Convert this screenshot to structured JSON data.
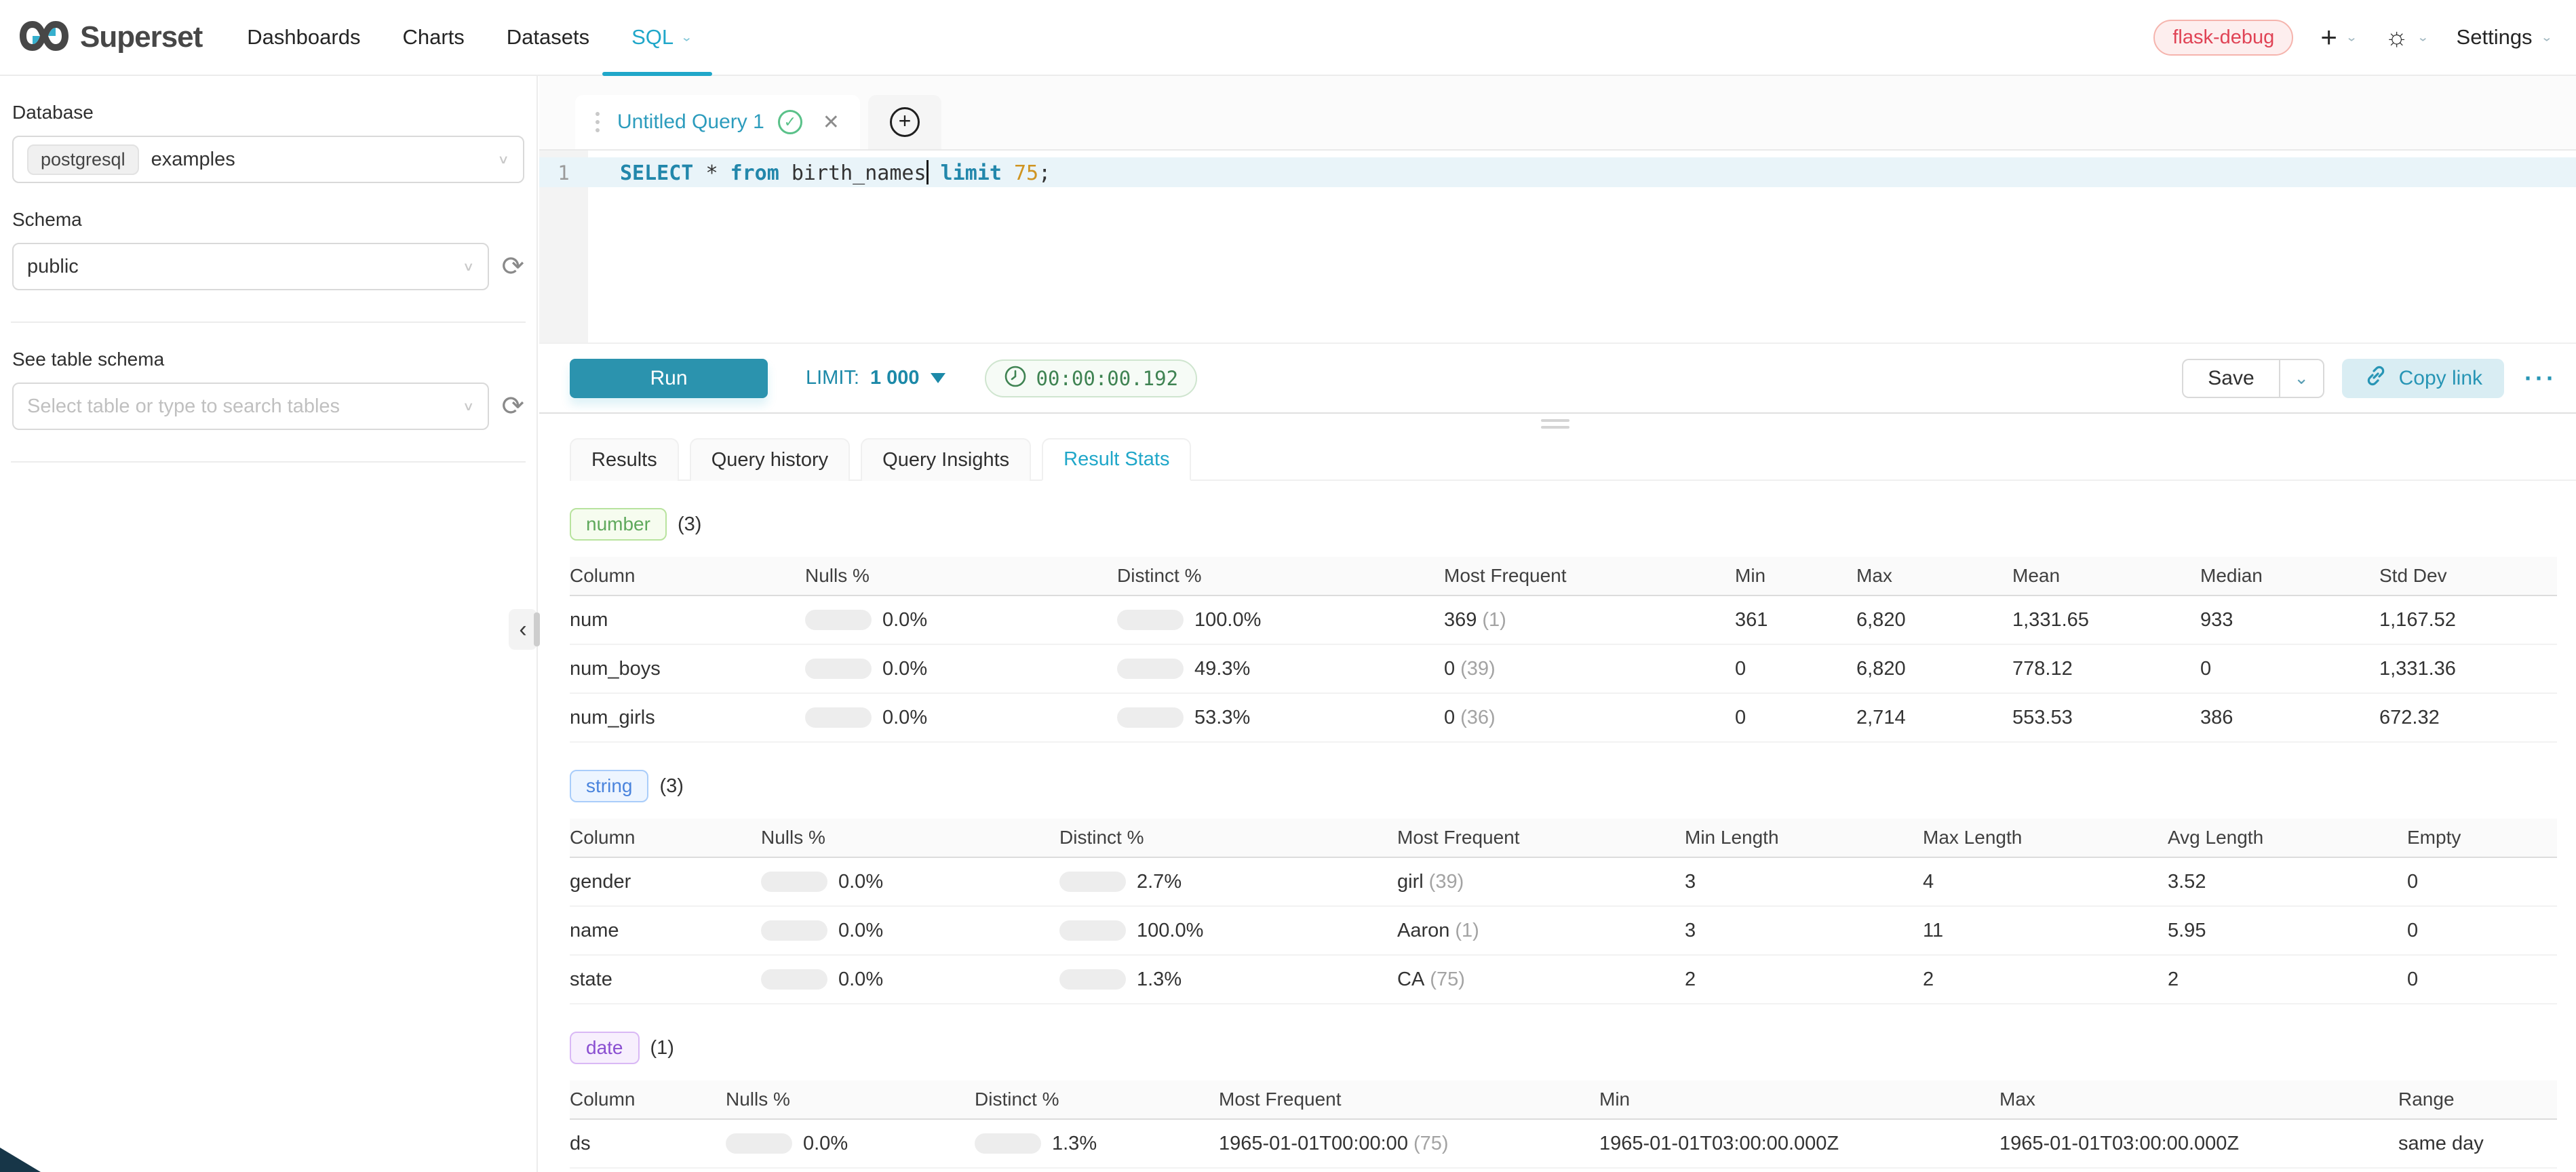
{
  "header": {
    "brand": "Superset",
    "nav": [
      {
        "label": "Dashboards"
      },
      {
        "label": "Charts"
      },
      {
        "label": "Datasets"
      },
      {
        "label": "SQL",
        "active": true
      }
    ],
    "environment_badge": "flask-debug",
    "settings_label": "Settings"
  },
  "colors": {
    "primary": "#20a7c9",
    "run_button": "#2b93ae",
    "success_bar": "#5ac189",
    "error_badge": "#e04355"
  },
  "sidebar": {
    "database_label": "Database",
    "database_engine": "postgresql",
    "database_value": "examples",
    "schema_label": "Schema",
    "schema_value": "public",
    "table_label": "See table schema",
    "table_placeholder": "Select table or type to search tables"
  },
  "editor": {
    "tab_title": "Untitled Query 1",
    "line_number": "1",
    "sql_tokens": [
      {
        "text": "SELECT",
        "type": "kw"
      },
      {
        "text": " ",
        "type": "plain"
      },
      {
        "text": "*",
        "type": "plain"
      },
      {
        "text": " ",
        "type": "plain"
      },
      {
        "text": "from",
        "type": "kw"
      },
      {
        "text": " ",
        "type": "plain"
      },
      {
        "text": "birth_names",
        "type": "plain"
      },
      {
        "type": "caret"
      },
      {
        "text": " ",
        "type": "plain"
      },
      {
        "text": "limit",
        "type": "kw"
      },
      {
        "text": " ",
        "type": "plain"
      },
      {
        "text": "75",
        "type": "num"
      },
      {
        "text": ";",
        "type": "plain"
      }
    ],
    "run_label": "Run",
    "limit_label": "LIMIT:",
    "limit_value": "1 000",
    "elapsed_time": "00:00:00.192",
    "save_label": "Save",
    "copy_link_label": "Copy link",
    "more_label": "···"
  },
  "south": {
    "tabs": [
      {
        "label": "Results"
      },
      {
        "label": "Query history"
      },
      {
        "label": "Query Insights"
      },
      {
        "label": "Result Stats",
        "active": true
      }
    ]
  },
  "result_stats": {
    "sections": [
      {
        "key": "number",
        "badge": "number",
        "count": "(3)",
        "badge_colors": {
          "text": "#5fa95c",
          "bg": "#f6fcef",
          "border": "#b8e39e"
        },
        "headers": [
          "Column",
          "Nulls %",
          "Distinct %",
          "Most Frequent",
          "Min",
          "Max",
          "Mean",
          "Median",
          "Std Dev"
        ],
        "rows": [
          {
            "column": "num",
            "nulls_pct": "0.0%",
            "nulls_fill": 0,
            "distinct_pct": "100.0%",
            "distinct_fill": 100,
            "most_frequent": "369",
            "most_frequent_count": "(1)",
            "values": [
              "361",
              "6,820",
              "1,331.65",
              "933",
              "1,167.52"
            ]
          },
          {
            "column": "num_boys",
            "nulls_pct": "0.0%",
            "nulls_fill": 0,
            "distinct_pct": "49.3%",
            "distinct_fill": 49.3,
            "most_frequent": "0",
            "most_frequent_count": "(39)",
            "values": [
              "0",
              "6,820",
              "778.12",
              "0",
              "1,331.36"
            ]
          },
          {
            "column": "num_girls",
            "nulls_pct": "0.0%",
            "nulls_fill": 0,
            "distinct_pct": "53.3%",
            "distinct_fill": 53.3,
            "most_frequent": "0",
            "most_frequent_count": "(36)",
            "values": [
              "0",
              "2,714",
              "553.53",
              "386",
              "672.32"
            ]
          }
        ]
      },
      {
        "key": "string",
        "badge": "string",
        "count": "(3)",
        "badge_colors": {
          "text": "#4a84dd",
          "bg": "#edf5ff",
          "border": "#a9cdfa"
        },
        "headers": [
          "Column",
          "Nulls %",
          "Distinct %",
          "Most Frequent",
          "Min Length",
          "Max Length",
          "Avg Length",
          "Empty"
        ],
        "rows": [
          {
            "column": "gender",
            "nulls_pct": "0.0%",
            "nulls_fill": 0,
            "distinct_pct": "2.7%",
            "distinct_fill": 2.7,
            "most_frequent": "girl",
            "most_frequent_count": "(39)",
            "values": [
              "3",
              "4",
              "3.52",
              "0"
            ]
          },
          {
            "column": "name",
            "nulls_pct": "0.0%",
            "nulls_fill": 0,
            "distinct_pct": "100.0%",
            "distinct_fill": 100,
            "most_frequent": "Aaron",
            "most_frequent_count": "(1)",
            "values": [
              "3",
              "11",
              "5.95",
              "0"
            ]
          },
          {
            "column": "state",
            "nulls_pct": "0.0%",
            "nulls_fill": 0,
            "distinct_pct": "1.3%",
            "distinct_fill": 1.3,
            "most_frequent": "CA",
            "most_frequent_count": "(75)",
            "values": [
              "2",
              "2",
              "2",
              "0"
            ]
          }
        ]
      },
      {
        "key": "date",
        "badge": "date",
        "count": "(1)",
        "badge_colors": {
          "text": "#8a4fd1",
          "bg": "#f7effd",
          "border": "#d9b8f5"
        },
        "headers": [
          "Column",
          "Nulls %",
          "Distinct %",
          "Most Frequent",
          "Min",
          "Max",
          "Range"
        ],
        "rows": [
          {
            "column": "ds",
            "nulls_pct": "0.0%",
            "nulls_fill": 0,
            "distinct_pct": "1.3%",
            "distinct_fill": 1.3,
            "most_frequent": "1965-01-01T00:00:00",
            "most_frequent_count": "(75)",
            "values": [
              "1965-01-01T03:00:00.000Z",
              "1965-01-01T03:00:00.000Z",
              "same day"
            ]
          }
        ]
      }
    ]
  }
}
